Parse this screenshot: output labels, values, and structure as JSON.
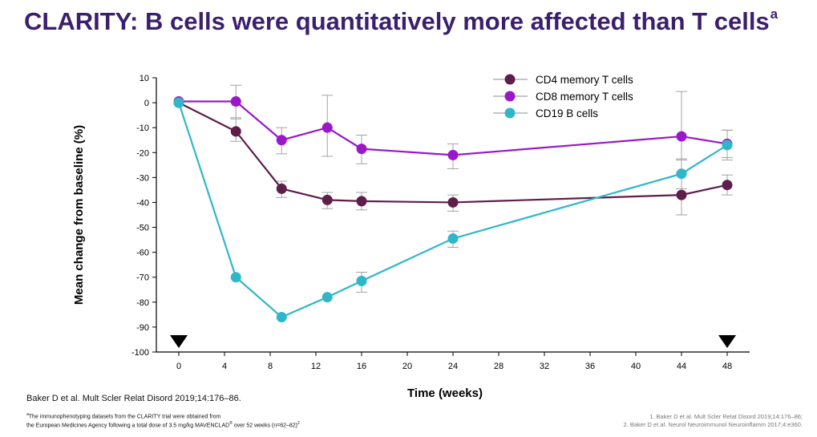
{
  "header": {
    "title": "CLARITY: B cells were quantitatively more affected than T cells",
    "title_sup": "a"
  },
  "chart_data": {
    "type": "line",
    "xlabel": "Time (weeks)",
    "ylabel": "Mean change from baseline (%)",
    "xlim": [
      0,
      48
    ],
    "ylim": [
      -100,
      10
    ],
    "xticks": [
      0,
      4,
      8,
      12,
      16,
      20,
      24,
      28,
      32,
      36,
      40,
      44,
      48
    ],
    "yticks": [
      10,
      0,
      -10,
      -20,
      -30,
      -40,
      -50,
      -60,
      -70,
      -80,
      -90,
      -100
    ],
    "grid": false,
    "legend_position": "top-right",
    "dosing_markers_x": [
      0,
      48
    ],
    "series": [
      {
        "name": "CD4 memory T cells",
        "color": "#5e1e4a",
        "x": [
          0,
          5,
          9,
          13,
          16,
          24,
          44,
          48
        ],
        "y": [
          0,
          -11.5,
          -34.5,
          -39,
          -39.5,
          -40,
          -37,
          -33
        ],
        "err_low": [
          0,
          -15.5,
          -38,
          -42.5,
          -43,
          -43.5,
          -45,
          -37
        ],
        "err_high": [
          0,
          -6.5,
          -31.5,
          -36,
          -36,
          -37,
          -28,
          -29
        ]
      },
      {
        "name": "CD8 memory T cells",
        "color": "#9b17c9",
        "x": [
          0,
          5,
          9,
          13,
          16,
          24,
          44,
          48
        ],
        "y": [
          0.5,
          0.5,
          -15,
          -10,
          -18.5,
          -21,
          -13.5,
          -16.5
        ],
        "err_low": [
          0.5,
          -6,
          -20.5,
          -21.5,
          -24.5,
          -26.5,
          -23,
          -22
        ],
        "err_high": [
          0.5,
          7,
          -10,
          3,
          -13,
          -16.5,
          4.5,
          -11
        ]
      },
      {
        "name": "CD19 B cells",
        "color": "#2fb7c8",
        "x": [
          0,
          5,
          9,
          13,
          16,
          24,
          44,
          48
        ],
        "y": [
          0,
          -70,
          -86,
          -78,
          -71.5,
          -54.5,
          -28.5,
          -17
        ],
        "err_low": [
          0,
          -70,
          -86,
          -78,
          -76,
          -58,
          -34.5,
          -23
        ],
        "err_high": [
          0,
          -70,
          -86,
          -78,
          -68,
          -51.5,
          -22.5,
          -11
        ]
      }
    ]
  },
  "references": {
    "main": "Baker D et al. Mult Scler Relat Disord 2019;14:176–86.",
    "footnote_sup": "a",
    "footnote_line1": "The immunophenotyping datasets from the CLARITY trial were obtained from",
    "footnote_line2_a": "the European Medicines Agency following a total dose of 3.5 mg/kg MAVENCLAD",
    "footnote_reg": "®",
    "footnote_line2_b": " over 52 weeks (n=62–82)",
    "footnote_line2_sup": "2",
    "ref1": "1. Baker D et al. Mult Scler Relat Disord 2019;14:176–86;",
    "ref2": "2. Baker D et al. Neurol Neuroimmunol Neuroinflamm 2017;4:e360."
  }
}
